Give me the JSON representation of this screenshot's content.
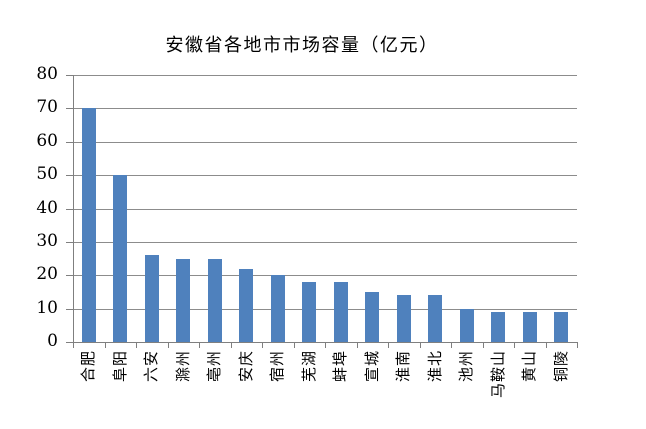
{
  "chart_data": {
    "type": "bar",
    "title": "安徽省各地市市场容量（亿元）",
    "categories": [
      "合肥",
      "阜阳",
      "六安",
      "滁州",
      "亳州",
      "安庆",
      "宿州",
      "芜湖",
      "蚌埠",
      "宣城",
      "淮南",
      "淮北",
      "池州",
      "马鞍山",
      "黄山",
      "铜陵"
    ],
    "values": [
      70,
      50,
      26,
      25,
      25,
      22,
      20,
      18,
      18,
      15,
      14,
      14,
      10,
      9,
      9,
      9
    ],
    "xlabel": "",
    "ylabel": "",
    "ylim": [
      0,
      80
    ],
    "ytick_step": 10,
    "yticks": [
      0,
      10,
      20,
      30,
      40,
      50,
      60,
      70,
      80
    ],
    "grid": true,
    "legend_position": "none",
    "x_label_rotation_deg": -90,
    "bar_color": "#4F81BD",
    "grid_color": "#8C8C8C",
    "axis_color": "#7F7F7F",
    "text_color": "#000000",
    "background_color": "#FFFFFF"
  }
}
